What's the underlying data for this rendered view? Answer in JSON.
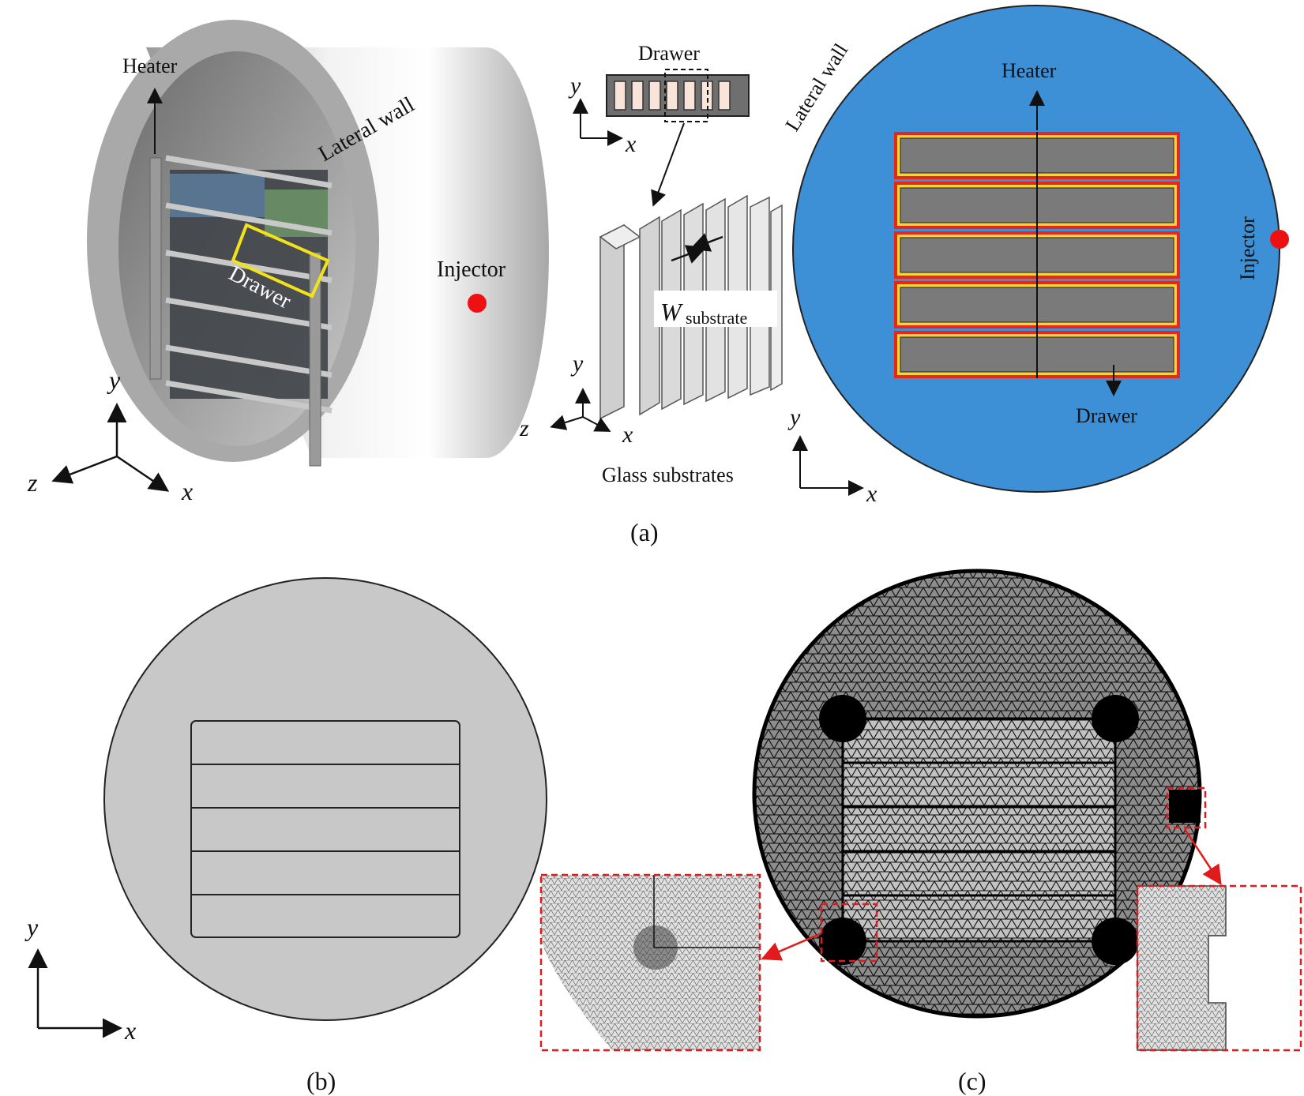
{
  "panel_a": {
    "caption": "(a)",
    "heater_label": "Heater",
    "lateral_wall_label": "Lateral wall",
    "drawer_label": "Drawer",
    "injector_label": "Injector",
    "axis_y": "y",
    "axis_x": "x",
    "axis_z": "z",
    "drawer_top_label": "Drawer",
    "w_label": "W",
    "w_subscript": "substrate",
    "glass_label": "Glass substrates",
    "right_lateral_wall_label": "Lateral wall",
    "right_heater_label": "Heater",
    "right_drawer_label": "Drawer",
    "right_injector_label": "Injector",
    "colors": {
      "domain_blue": "#3d8fd6",
      "heater_red": "#e8261b",
      "heater_yellow": "#f5d33a",
      "drawer_gray": "#7a7a7a",
      "injector_red": "#ee1111",
      "highlight_yellow": "#f2e21a"
    }
  },
  "panel_b": {
    "caption": "(b)",
    "axis_y": "y",
    "axis_x": "x",
    "colors": {
      "domain_gray": "#c8c8c8"
    }
  },
  "panel_c": {
    "caption": "(c)",
    "colors": {
      "mesh_dark": "#111111",
      "zoom_frame": "#e11b1b"
    }
  }
}
